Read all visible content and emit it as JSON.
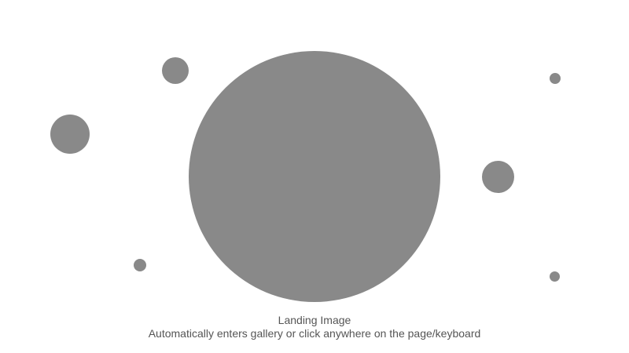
{
  "landing": {
    "title": "Landing Image",
    "subtitle": "Automatically enters gallery or click anywhere on the page/keyboard"
  },
  "colors": {
    "circle": "#898989",
    "caption_text": "#555555",
    "background": "#ffffff"
  }
}
